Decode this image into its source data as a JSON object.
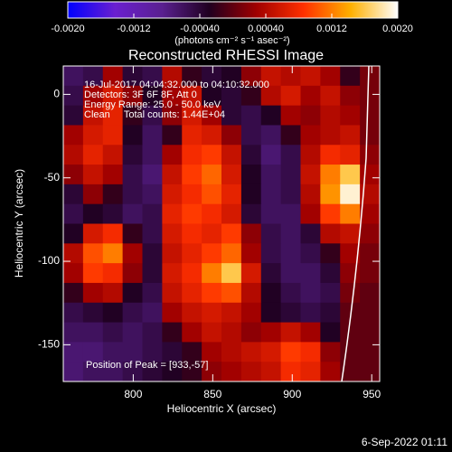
{
  "chart_data": {
    "type": "image",
    "title": "Reconstructed RHESSI Image",
    "xlabel": "Heliocentric X (arcsec)",
    "ylabel": "Heliocentric Y (arcsec)",
    "xlim": [
      756,
      955
    ],
    "ylim": [
      -172,
      17
    ],
    "xticks": [
      800,
      850,
      900,
      950
    ],
    "yticks": [
      0,
      -50,
      -100,
      -150
    ],
    "colorbar": {
      "label": "(photons cm⁻² s⁻¹ asec⁻²)",
      "lim": [
        -0.002,
        0.002
      ],
      "ticks": [
        {
          "value": -0.002,
          "label": "-0.0020"
        },
        {
          "value": -0.0012,
          "label": "-0.0012"
        },
        {
          "value": -0.0004,
          "label": "-0.00040"
        },
        {
          "value": 0.0004,
          "label": "0.00040"
        },
        {
          "value": 0.0012,
          "label": "0.0012"
        },
        {
          "value": 0.002,
          "label": "0.0020"
        }
      ]
    },
    "colormap": [
      "#0000ff",
      "#6a1fd0",
      "#5a2090",
      "#200020",
      "#a00000",
      "#ff3000",
      "#ffb000",
      "#ffffff"
    ],
    "annotations": [
      "16-Jul-2017 04:04:32.000 to 04:10:32.000",
      "Detectors: 3F 6F 8F, Att 0",
      "Energy Range: 25.0 - 50.0 keV",
      "Clean     Total counts: 1.44E+04",
      "Position of Peak = [933,-57]"
    ],
    "footer": "6-Sep-2022 01:11",
    "z": [
      [
        -0.0006,
        -0.0005,
        0.0003,
        -0.0004,
        -0.0005,
        0.0004,
        -0.0002,
        -0.0004,
        -0.0003,
        0.0002,
        0.0005,
        0.0004,
        0.0005,
        0.0003,
        -0.0002,
        0.0001
      ],
      [
        -0.0005,
        0.0003,
        0.0006,
        0.0002,
        -0.0003,
        0.0003,
        0.0005,
        -0.0003,
        -0.0004,
        -0.0002,
        0.0004,
        0.0006,
        0.0003,
        0.0005,
        0.0002,
        0.0001
      ],
      [
        -0.0004,
        0.0005,
        0.0007,
        -0.0002,
        -0.0005,
        0.0002,
        0.0006,
        0.0003,
        -0.0004,
        -0.0005,
        -0.0003,
        0.0003,
        0.0002,
        0.0004,
        0.0003,
        0.0001
      ],
      [
        0.0003,
        0.0006,
        0.0007,
        -0.0003,
        -0.0006,
        -0.0002,
        0.0007,
        0.0006,
        0.0002,
        -0.0005,
        -0.0006,
        -0.0002,
        0.0003,
        0.0004,
        0.0005,
        0.0001
      ],
      [
        0.0004,
        0.0007,
        0.0005,
        -0.0004,
        -0.0006,
        0.0003,
        0.0008,
        0.0009,
        0.0005,
        -0.0004,
        -0.0007,
        -0.0005,
        0.0004,
        0.0008,
        0.0007,
        0.0002
      ],
      [
        0.0002,
        0.0005,
        0.0003,
        -0.0005,
        -0.0007,
        0.0005,
        0.0009,
        0.0011,
        0.0006,
        -0.0003,
        -0.0006,
        -0.0005,
        0.0005,
        0.0012,
        0.0016,
        0.0003
      ],
      [
        -0.0004,
        0.0002,
        -0.0002,
        -0.0005,
        -0.0006,
        0.0006,
        0.0008,
        0.001,
        0.0007,
        -0.0003,
        -0.0006,
        -0.0005,
        0.0004,
        0.0013,
        0.0019,
        0.0004
      ],
      [
        -0.0005,
        -0.0003,
        -0.0004,
        -0.0006,
        -0.0005,
        0.0007,
        0.0009,
        0.0008,
        0.0006,
        -0.0004,
        -0.0006,
        -0.0006,
        0.0003,
        0.0009,
        0.0012,
        0.0003
      ],
      [
        -0.0003,
        0.0006,
        0.0008,
        -0.0002,
        -0.0005,
        0.0006,
        0.0008,
        0.0007,
        0.0009,
        0.0002,
        -0.0005,
        -0.0006,
        -0.0004,
        0.0004,
        0.0005,
        0.0002
      ],
      [
        0.0004,
        0.001,
        0.0012,
        0.0003,
        -0.0004,
        0.0005,
        0.0007,
        0.0009,
        0.0011,
        0.0003,
        -0.0005,
        -0.0006,
        -0.0005,
        -0.0002,
        0.0003,
        0.0001
      ],
      [
        0.0003,
        0.0009,
        0.0008,
        0.0002,
        -0.0004,
        0.0006,
        0.0008,
        0.0012,
        0.0016,
        0.0006,
        -0.0004,
        -0.0006,
        -0.0006,
        -0.0004,
        0.0002,
        0.0001
      ],
      [
        -0.0002,
        0.0003,
        0.0004,
        -0.0003,
        -0.0005,
        0.0005,
        0.0007,
        0.0009,
        0.001,
        0.0004,
        -0.0003,
        -0.0005,
        -0.0006,
        -0.0005,
        0.0001,
        0
      ],
      [
        -0.0005,
        -0.0004,
        -0.0003,
        -0.0005,
        -0.0006,
        0.0003,
        0.0005,
        0.0006,
        0.0005,
        0.0003,
        -0.0003,
        -0.0004,
        -0.0005,
        -0.0004,
        0,
        0
      ],
      [
        -0.0006,
        -0.0006,
        -0.0005,
        -0.0006,
        -0.0005,
        -0.0002,
        0.0003,
        0.0005,
        0.0004,
        0.0002,
        0.0003,
        0.0005,
        0.0003,
        -0.0003,
        0,
        0
      ],
      [
        -0.0007,
        -0.0007,
        -0.0006,
        -0.0006,
        -0.0005,
        -0.0004,
        -0.0002,
        0.0003,
        0.0004,
        0.0005,
        0.0006,
        0.0009,
        0.0008,
        0.0002,
        0,
        0
      ],
      [
        -0.0007,
        -0.0006,
        -0.0006,
        -0.0005,
        -0.0004,
        -0.0003,
        -0.0002,
        0.0002,
        0.0003,
        0.0004,
        0.0005,
        0.0008,
        0.0007,
        0.0003,
        0,
        0
      ]
    ]
  }
}
